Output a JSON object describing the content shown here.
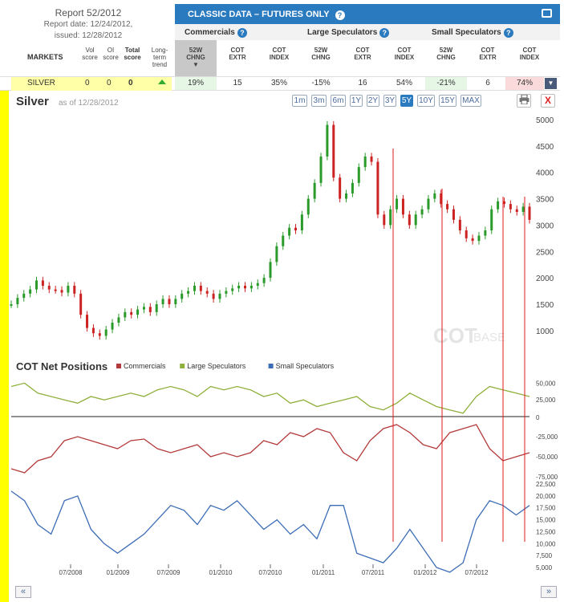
{
  "report": {
    "title": "Report 52/2012",
    "date_line": "Report date: 12/24/2012,",
    "issued_line": "issued: 12/28/2012"
  },
  "header": {
    "title": "CLASSIC DATA – FUTURES ONLY"
  },
  "groups": {
    "commercials": "Commercials",
    "large": "Large Speculators",
    "small": "Small Speculators"
  },
  "columns": {
    "markets": "MARKETS",
    "vol": [
      "Vol",
      "score"
    ],
    "oi": [
      "OI",
      "score"
    ],
    "total": [
      "Total",
      "score"
    ],
    "trend": [
      "Long-",
      "term",
      "trend"
    ],
    "chng": [
      "52W",
      "CHNG"
    ],
    "extr": [
      "COT",
      "EXTR"
    ],
    "index": [
      "COT",
      "INDEX"
    ]
  },
  "row": {
    "market": "SILVER",
    "vol": "0",
    "oi": "0",
    "total": "0",
    "com": [
      "19%",
      "15",
      "35%"
    ],
    "large": [
      "-15%",
      "16",
      "54%"
    ],
    "small": [
      "-21%",
      "6",
      "74%"
    ]
  },
  "chart": {
    "title": "Silver",
    "asof": "as of 12/28/2012",
    "watermark_a": "COT",
    "watermark_b": "BASE",
    "ranges": [
      "1m",
      "3m",
      "6m",
      "1Y",
      "2Y",
      "3Y",
      "5Y",
      "10Y",
      "15Y",
      "MAX"
    ],
    "selected_range": "5Y",
    "close_label": "X"
  },
  "icons": {
    "help": "question-mark-icon",
    "print": "printer-icon",
    "up": "arrow-up-icon",
    "close": "close-icon",
    "prev": "double-left-icon",
    "next": "double-right-icon"
  },
  "colors": {
    "accent": "#2a7ac0",
    "commercials": "#b33a3a",
    "large": "#8fb03c",
    "small": "#3c6db5",
    "up": "#2a9a2a",
    "down": "#cc2222",
    "highlight": "#ffff00"
  },
  "nav": {
    "prev": "«",
    "next": "»"
  },
  "chart_data": [
    {
      "type": "candlestick",
      "title": "Silver",
      "x_ticks": [
        "07/2008",
        "01/2009",
        "07/2009",
        "01/2010",
        "07/2010",
        "01/2011",
        "07/2011",
        "01/2012",
        "07/2012"
      ],
      "y_ticks": [
        1000,
        1500,
        2000,
        2500,
        3000,
        3500,
        4000,
        4500,
        5000
      ],
      "ylim": [
        800,
        5000
      ],
      "series": [
        {
          "values": [
            [
              0,
              1500
            ],
            [
              2,
              1620
            ],
            [
              4,
              1700
            ],
            [
              6,
              1780
            ],
            [
              8,
              1950
            ],
            [
              10,
              1850
            ],
            [
              12,
              1780
            ],
            [
              14,
              1770
            ],
            [
              16,
              1720
            ],
            [
              18,
              1850
            ],
            [
              20,
              1700
            ],
            [
              22,
              1300
            ],
            [
              24,
              1050
            ],
            [
              26,
              950
            ],
            [
              28,
              900
            ],
            [
              30,
              1020
            ],
            [
              32,
              1150
            ],
            [
              34,
              1250
            ],
            [
              36,
              1350
            ],
            [
              38,
              1300
            ],
            [
              40,
              1400
            ],
            [
              42,
              1450
            ],
            [
              44,
              1350
            ],
            [
              46,
              1500
            ],
            [
              48,
              1600
            ],
            [
              50,
              1500
            ],
            [
              52,
              1600
            ],
            [
              54,
              1700
            ],
            [
              56,
              1750
            ],
            [
              58,
              1850
            ],
            [
              60,
              1750
            ],
            [
              62,
              1700
            ],
            [
              64,
              1600
            ],
            [
              66,
              1700
            ],
            [
              68,
              1750
            ],
            [
              70,
              1800
            ],
            [
              72,
              1850
            ],
            [
              74,
              1800
            ],
            [
              76,
              1850
            ],
            [
              78,
              1900
            ],
            [
              80,
              2000
            ],
            [
              82,
              2300
            ],
            [
              84,
              2600
            ],
            [
              86,
              2800
            ],
            [
              88,
              2950
            ],
            [
              90,
              2900
            ],
            [
              92,
              3200
            ],
            [
              94,
              3500
            ],
            [
              96,
              3800
            ],
            [
              98,
              4300
            ],
            [
              100,
              4900
            ],
            [
              102,
              3900
            ],
            [
              104,
              3500
            ],
            [
              106,
              3600
            ],
            [
              108,
              3800
            ],
            [
              110,
              4100
            ],
            [
              112,
              4300
            ],
            [
              114,
              4200
            ],
            [
              116,
              3200
            ],
            [
              118,
              3000
            ],
            [
              120,
              3300
            ],
            [
              122,
              3500
            ],
            [
              124,
              3200
            ],
            [
              126,
              3000
            ],
            [
              128,
              3200
            ],
            [
              130,
              3300
            ],
            [
              132,
              3500
            ],
            [
              134,
              3600
            ],
            [
              136,
              3400
            ],
            [
              138,
              3300
            ],
            [
              140,
              3100
            ],
            [
              142,
              2900
            ],
            [
              144,
              2750
            ],
            [
              146,
              2700
            ],
            [
              148,
              2800
            ],
            [
              150,
              2900
            ],
            [
              152,
              3300
            ],
            [
              154,
              3450
            ],
            [
              156,
              3400
            ],
            [
              158,
              3300
            ],
            [
              160,
              3250
            ],
            [
              162,
              3350
            ],
            [
              164,
              3100
            ]
          ]
        }
      ],
      "x_units": "weeks since start (illustrative index)"
    },
    {
      "type": "line",
      "title": "COT Net Positions",
      "x_ticks": [
        "07/2008",
        "01/2009",
        "07/2009",
        "01/2010",
        "07/2010",
        "01/2011",
        "07/2011",
        "01/2012",
        "07/2012"
      ],
      "series": [
        {
          "name": "Commercials",
          "values": [
            -65000,
            -70000,
            -55000,
            -50000,
            -30000,
            -25000,
            -30000,
            -35000,
            -40000,
            -30000,
            -28000,
            -40000,
            -45000,
            -40000,
            -35000,
            -50000,
            -45000,
            -50000,
            -45000,
            -30000,
            -35000,
            -20000,
            -25000,
            -15000,
            -20000,
            -45000,
            -55000,
            -30000,
            -15000,
            -10000,
            -20000,
            -35000,
            -40000,
            -20000,
            -15000,
            -10000,
            -40000,
            -55000,
            -50000,
            -45000
          ]
        },
        {
          "name": "Large Speculators",
          "values": [
            45000,
            50000,
            35000,
            30000,
            25000,
            20000,
            30000,
            25000,
            30000,
            35000,
            30000,
            40000,
            45000,
            40000,
            30000,
            45000,
            40000,
            45000,
            40000,
            30000,
            35000,
            20000,
            25000,
            15000,
            20000,
            25000,
            30000,
            15000,
            10000,
            20000,
            35000,
            25000,
            15000,
            10000,
            5000,
            30000,
            45000,
            40000,
            35000,
            30000
          ]
        },
        {
          "name": "Small Speculators",
          "values": [
            21000,
            19000,
            14000,
            12000,
            19000,
            20000,
            13000,
            10000,
            8000,
            10000,
            12000,
            15000,
            18000,
            17000,
            14000,
            18000,
            17000,
            19000,
            16000,
            13000,
            15000,
            12000,
            14000,
            11000,
            18000,
            18000,
            8000,
            7000,
            6000,
            9000,
            13000,
            9000,
            5000,
            4000,
            6000,
            15000,
            19000,
            18000,
            16000,
            18000
          ]
        }
      ],
      "y_ticks_top": [
        25000,
        50000
      ],
      "y_ticks_mid": [
        -25000,
        -50000,
        -75000
      ],
      "y_ticks_bottom": [
        5000,
        7500,
        10000,
        12500,
        15000,
        17500,
        20000,
        22500
      ],
      "zero": 0
    }
  ]
}
